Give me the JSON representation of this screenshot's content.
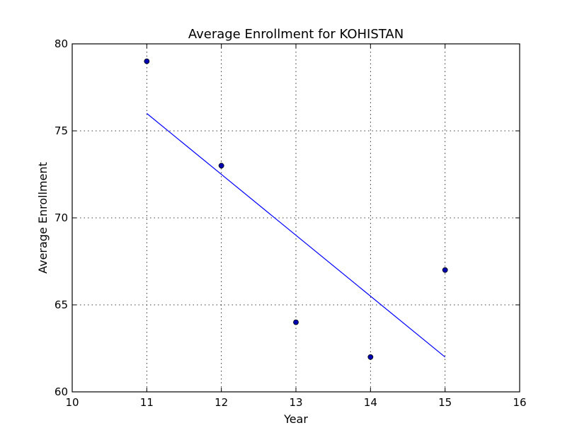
{
  "chart_data": {
    "type": "scatter",
    "title": "Average Enrollment for KOHISTAN",
    "xlabel": "Year",
    "ylabel": "Average Enrollment",
    "xlim": [
      10,
      16
    ],
    "ylim": [
      60,
      80
    ],
    "xticks": [
      10,
      11,
      12,
      13,
      14,
      15,
      16
    ],
    "yticks": [
      60,
      65,
      70,
      75,
      80
    ],
    "grid": true,
    "series": [
      {
        "type": "scatter",
        "x": [
          11,
          12,
          13,
          14,
          15
        ],
        "y": [
          79,
          73,
          64,
          62,
          67
        ],
        "color": "#0000b3"
      },
      {
        "type": "line",
        "x": [
          11,
          15
        ],
        "y": [
          76,
          62
        ],
        "color": "#0000ff"
      }
    ]
  }
}
